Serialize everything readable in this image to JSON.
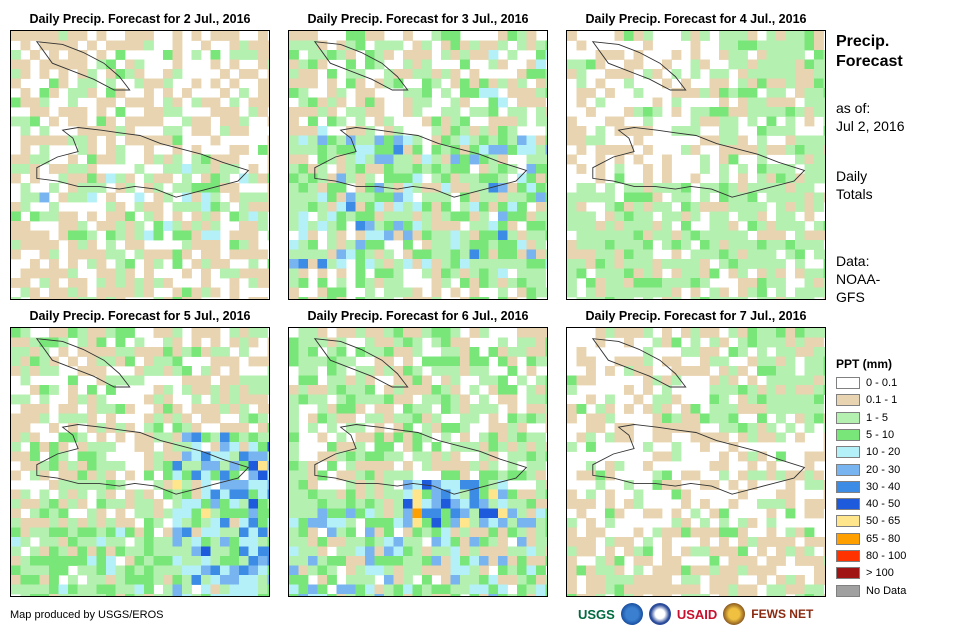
{
  "panels": [
    {
      "title": "Daily Precip. Forecast for 2 Jul., 2016",
      "seed": 11,
      "profile": "p2"
    },
    {
      "title": "Daily Precip. Forecast for 3 Jul., 2016",
      "seed": 23,
      "profile": "p3"
    },
    {
      "title": "Daily Precip. Forecast for 4 Jul., 2016",
      "seed": 37,
      "profile": "p4"
    },
    {
      "title": "Daily Precip. Forecast for 5 Jul., 2016",
      "seed": 41,
      "profile": "p5"
    },
    {
      "title": "Daily Precip. Forecast for 6 Jul., 2016",
      "seed": 53,
      "profile": "p6"
    },
    {
      "title": "Daily Precip. Forecast for 7 Jul., 2016",
      "seed": 67,
      "profile": "p7"
    }
  ],
  "side": {
    "title_line1": "Precip.",
    "title_line2": "Forecast",
    "asof_line1": "as of:",
    "asof_line2": "Jul 2, 2016",
    "daily_line1": "Daily",
    "daily_line2": "Totals",
    "data_line1": "Data:",
    "data_line2": "NOAA-",
    "data_line3": "GFS"
  },
  "legend": {
    "title": "PPT (mm)",
    "items": [
      {
        "label": "0 - 0.1",
        "color": "#ffffff"
      },
      {
        "label": "0.1 - 1",
        "color": "#e8d4b0"
      },
      {
        "label": "1 - 5",
        "color": "#b4f0b0"
      },
      {
        "label": "5 - 10",
        "color": "#78e678"
      },
      {
        "label": "10 - 20",
        "color": "#b4f0f8"
      },
      {
        "label": "20 - 30",
        "color": "#78b4f0"
      },
      {
        "label": "30 - 40",
        "color": "#3c8ce6"
      },
      {
        "label": "40 - 50",
        "color": "#1e5adc"
      },
      {
        "label": "50 - 65",
        "color": "#ffe68c"
      },
      {
        "label": "65 - 80",
        "color": "#ffa000"
      },
      {
        "label": "80 - 100",
        "color": "#ff3200"
      },
      {
        "label": "> 100",
        "color": "#a01414"
      },
      {
        "label": "No Data",
        "color": "#a0a0a0"
      }
    ]
  },
  "credit": "Map produced by USGS/EROS",
  "logos": {
    "usgs": "USGS",
    "usaid": "USAID",
    "fewsnet": "FEWS NET"
  }
}
